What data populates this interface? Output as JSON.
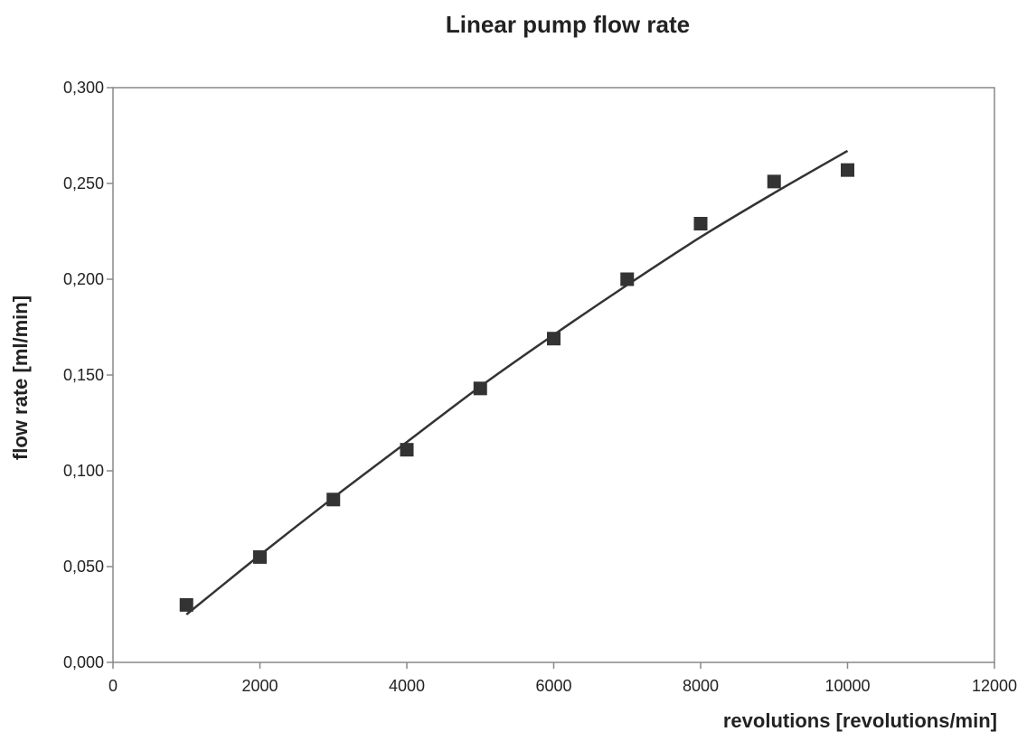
{
  "chart_data": {
    "type": "scatter",
    "title": "Linear pump flow rate",
    "xlabel": "revolutions [revolutions/min]",
    "ylabel": "flow rate [ml/min]",
    "xlim": [
      0,
      12000
    ],
    "ylim": [
      0,
      0.3
    ],
    "x_ticks": [
      0,
      2000,
      4000,
      6000,
      8000,
      10000,
      12000
    ],
    "x_tick_labels": [
      "0",
      "2000",
      "4000",
      "6000",
      "8000",
      "10000",
      "12000"
    ],
    "y_ticks": [
      0,
      0.05,
      0.1,
      0.15,
      0.2,
      0.25,
      0.3
    ],
    "y_tick_labels": [
      "0,000",
      "0,050",
      "0,100",
      "0,150",
      "0,200",
      "0,250",
      "0,300"
    ],
    "grid": false,
    "legend": false,
    "colors": {
      "marker": "#333333",
      "trendline": "#333333",
      "axis": "#888888"
    },
    "series": [
      {
        "marker": "square",
        "x": [
          1000,
          2000,
          3000,
          4000,
          5000,
          6000,
          7000,
          8000,
          9000,
          10000
        ],
        "y": [
          0.03,
          0.055,
          0.085,
          0.111,
          0.143,
          0.169,
          0.2,
          0.229,
          0.251,
          0.257
        ]
      }
    ],
    "trendline": {
      "type": "polynomial",
      "x": [
        1000,
        2000,
        3000,
        4000,
        5000,
        6000,
        7000,
        8000,
        9000,
        10000
      ],
      "y": [
        0.025,
        0.056,
        0.086,
        0.115,
        0.144,
        0.171,
        0.197,
        0.222,
        0.245,
        0.267
      ]
    }
  }
}
